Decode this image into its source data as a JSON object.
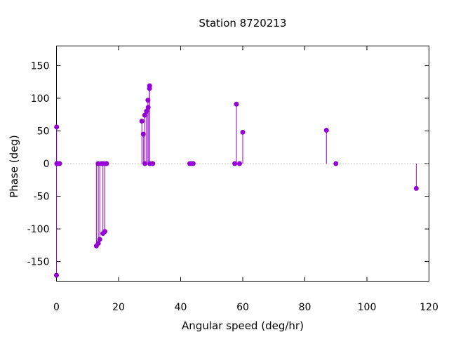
{
  "chart_data": {
    "type": "scatter",
    "style": "impulses-with-points",
    "title": "Station 8720213",
    "xlabel": "Angular speed (deg/hr)",
    "ylabel": "Phase (deg)",
    "xlim": [
      0,
      120
    ],
    "ylim": [
      -180,
      180
    ],
    "xticks": [
      0,
      20,
      40,
      60,
      80,
      100,
      120
    ],
    "yticks": [
      -150,
      -100,
      -50,
      0,
      50,
      100,
      150
    ],
    "grid": false,
    "zero_line": "dotted",
    "legend": "none",
    "color": "#9400d3",
    "points": [
      {
        "x": 0.0,
        "y": -171
      },
      {
        "x": 0.04,
        "y": 56
      },
      {
        "x": 0.08,
        "y": 0
      },
      {
        "x": 0.14,
        "y": 0
      },
      {
        "x": 0.55,
        "y": 0
      },
      {
        "x": 1.02,
        "y": 0
      },
      {
        "x": 12.85,
        "y": -126
      },
      {
        "x": 13.4,
        "y": 0
      },
      {
        "x": 13.47,
        "y": -122
      },
      {
        "x": 13.94,
        "y": -116
      },
      {
        "x": 14.49,
        "y": 0
      },
      {
        "x": 14.96,
        "y": -107
      },
      {
        "x": 15.04,
        "y": 0
      },
      {
        "x": 15.59,
        "y": -104
      },
      {
        "x": 15.96,
        "y": 0
      },
      {
        "x": 16.14,
        "y": 0
      },
      {
        "x": 27.5,
        "y": 65
      },
      {
        "x": 27.97,
        "y": 45
      },
      {
        "x": 28.44,
        "y": 74
      },
      {
        "x": 28.51,
        "y": 0
      },
      {
        "x": 28.99,
        "y": 80
      },
      {
        "x": 29.46,
        "y": 97
      },
      {
        "x": 29.53,
        "y": 86
      },
      {
        "x": 29.96,
        "y": 115
      },
      {
        "x": 30.0,
        "y": 119
      },
      {
        "x": 30.08,
        "y": 0
      },
      {
        "x": 31.02,
        "y": 0
      },
      {
        "x": 42.93,
        "y": 0
      },
      {
        "x": 43.48,
        "y": 0
      },
      {
        "x": 44.03,
        "y": 0
      },
      {
        "x": 57.42,
        "y": 0
      },
      {
        "x": 57.97,
        "y": 91
      },
      {
        "x": 58.98,
        "y": 0
      },
      {
        "x": 60.0,
        "y": 48
      },
      {
        "x": 86.95,
        "y": 51
      },
      {
        "x": 90.0,
        "y": 0
      },
      {
        "x": 115.9,
        "y": -38
      }
    ]
  }
}
